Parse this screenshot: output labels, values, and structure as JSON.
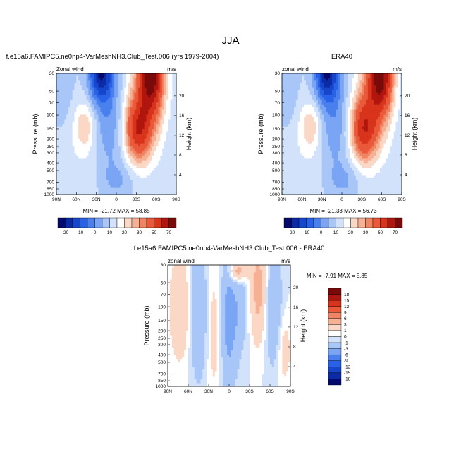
{
  "figure": {
    "title": "JJA"
  },
  "colors": {
    "frame": "#000000"
  },
  "chart_data": [
    {
      "type": "heatmap",
      "panel_title": "f.e15a6.FAMIPC5.ne0np4-VarMeshNH3.Club_Test.006 (yrs 1979-2004)",
      "left_label": "Zonal wind",
      "units_label": "m/s",
      "min_max": "MIN = -21.72  MAX = 58.85",
      "min": -21.72,
      "max": 58.85,
      "xlabel": "",
      "ylabel": "Pressure (mb)",
      "y2label": "Height (km)",
      "x_ticks": [
        "90N",
        "60N",
        "30N",
        "0",
        "30S",
        "60S",
        "90S"
      ],
      "y_ticks": [
        "30",
        "50",
        "70",
        "100",
        "150",
        "200",
        "250",
        "300",
        "400",
        "500",
        "700",
        "850",
        "1000"
      ],
      "y2_ticks": [
        "20",
        "16",
        "12",
        "8",
        "4"
      ],
      "colorbar": {
        "orientation": "horizontal",
        "labels": [
          "-20",
          "-10",
          "0",
          "10",
          "20",
          "30",
          "50",
          "70"
        ],
        "levels": [
          -25,
          -20,
          -15,
          -10,
          -5,
          0,
          5,
          10,
          15,
          20,
          25,
          30,
          40,
          50,
          60,
          70
        ],
        "colors": [
          "#050a6e",
          "#0c2aa6",
          "#1546cc",
          "#2962e6",
          "#4a80ee",
          "#7aa4f4",
          "#a8c6f8",
          "#d2e2fb",
          "#ffffff",
          "#fbd8c6",
          "#f6b195",
          "#f08563",
          "#e9593a",
          "#d8331b",
          "#b0160e",
          "#7a0a0a"
        ]
      }
    },
    {
      "type": "heatmap",
      "panel_title": "ERA40",
      "left_label": "zonal wind",
      "units_label": "m/s",
      "min_max": "MIN = -21.33  MAX = 56.73",
      "min": -21.33,
      "max": 56.73,
      "xlabel": "",
      "ylabel": "Pressure (mb)",
      "y2label": "Height (km)",
      "x_ticks": [
        "90N",
        "60N",
        "30N",
        "0",
        "30S",
        "60S",
        "90S"
      ],
      "y_ticks": [
        "30",
        "50",
        "70",
        "100",
        "150",
        "200",
        "250",
        "300",
        "400",
        "500",
        "700",
        "850",
        "1000"
      ],
      "y2_ticks": [
        "20",
        "16",
        "12",
        "8",
        "4"
      ],
      "colorbar": {
        "orientation": "horizontal",
        "labels": [
          "-20",
          "-10",
          "0",
          "10",
          "20",
          "30",
          "50",
          "70"
        ],
        "levels": [
          -25,
          -20,
          -15,
          -10,
          -5,
          0,
          5,
          10,
          15,
          20,
          25,
          30,
          40,
          50,
          60,
          70
        ],
        "colors": [
          "#050a6e",
          "#0c2aa6",
          "#1546cc",
          "#2962e6",
          "#4a80ee",
          "#7aa4f4",
          "#a8c6f8",
          "#d2e2fb",
          "#ffffff",
          "#fbd8c6",
          "#f6b195",
          "#f08563",
          "#e9593a",
          "#d8331b",
          "#b0160e",
          "#7a0a0a"
        ]
      }
    },
    {
      "type": "heatmap",
      "panel_title": "f.e15a6.FAMIPC5.ne0np4-VarMeshNH3.Club_Test.006 - ERA40",
      "left_label": "zonal wind",
      "units_label": "m/s",
      "min_max": "MIN = -7.91  MAX =  5.85",
      "min": -7.91,
      "max": 5.85,
      "xlabel": "",
      "ylabel": "Pressure (mb)",
      "y2label": "Height (km)",
      "x_ticks": [
        "90N",
        "60N",
        "30N",
        "0",
        "30S",
        "60S",
        "90S"
      ],
      "y_ticks": [
        "30",
        "50",
        "70",
        "100",
        "150",
        "200",
        "250",
        "300",
        "400",
        "500",
        "700",
        "850",
        "1000"
      ],
      "y2_ticks": [
        "20",
        "16",
        "12",
        "8",
        "4"
      ],
      "colorbar": {
        "orientation": "vertical",
        "labels": [
          "18",
          "15",
          "12",
          "9",
          "6",
          "3",
          "1",
          "0",
          "-1",
          "-3",
          "-6",
          "-9",
          "-12",
          "-15",
          "-18"
        ],
        "colors": [
          "#7a0a0a",
          "#b0160e",
          "#d8331b",
          "#e9593a",
          "#f08563",
          "#f6b195",
          "#fbd8c6",
          "#ffffff",
          "#d2e2fb",
          "#a8c6f8",
          "#7aa4f4",
          "#4a80ee",
          "#2962e6",
          "#1546cc",
          "#0c2aa6",
          "#050a6e"
        ]
      }
    }
  ]
}
